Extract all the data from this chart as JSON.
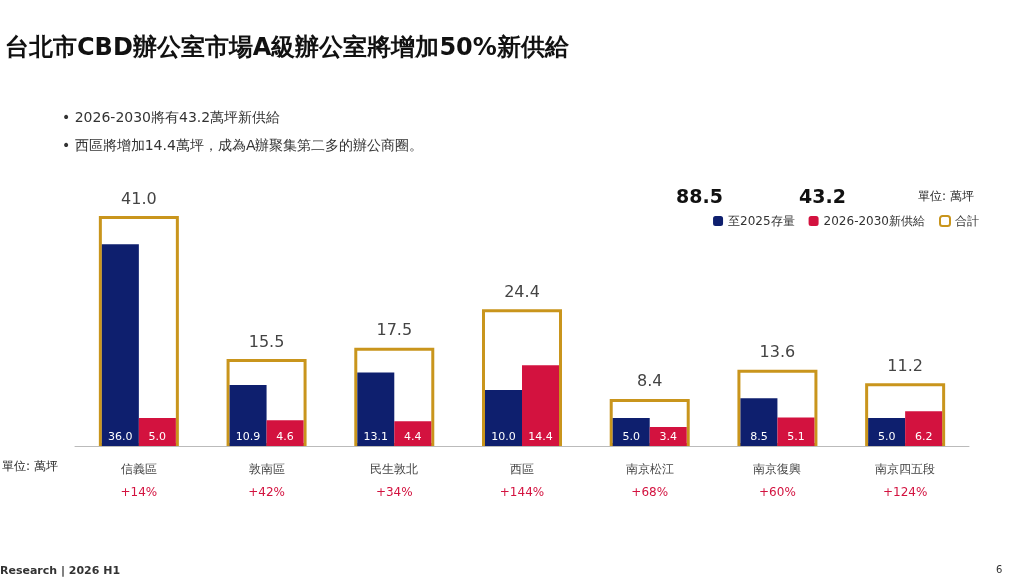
{
  "chart_data": {
    "type": "bar",
    "title": "台北市CBD辦公室市場A級辦公室將增加50%新供給",
    "categories": [
      "信義區",
      "敦南區",
      "民生敦北",
      "西區",
      "南京松江",
      "南京復興",
      "南京四五段"
    ],
    "series": [
      {
        "name": "至2025存量",
        "color": "#0e1f6e",
        "values": [
          36.0,
          10.9,
          13.1,
          10.0,
          5.0,
          8.5,
          5.0
        ],
        "value_labels": [
          "36.0",
          "10.9",
          "13.1",
          "10.0",
          "5.0",
          "8.5",
          "5.0"
        ]
      },
      {
        "name": "2026-2030新供給",
        "color": "#d3123f",
        "values": [
          5.0,
          4.6,
          4.4,
          14.4,
          3.4,
          5.1,
          6.2
        ],
        "value_labels": [
          "5.0",
          "4.6",
          "4.4",
          "14.4",
          "3.4",
          "5.1",
          "6.2"
        ]
      },
      {
        "name": "合計",
        "color": "#c9951c",
        "values": [
          41.0,
          15.5,
          17.5,
          24.4,
          8.4,
          13.6,
          11.2
        ],
        "value_labels": [
          "41.0",
          "15.5",
          "17.5",
          "24.4",
          "8.4",
          "13.6",
          "11.2"
        ]
      }
    ],
    "legend": "top right",
    "annotations": [
      "• 2026-2030將有43.2萬坪新供給",
      "• 西區將增加14.4萬坪，成為A辦聚集第二多的辦公商圈。",
      "88.5",
      "43.2",
      "單位: 萬坪",
      "單位: 萬坪",
      "Research | 2026 H1",
      "6",
      "+14%",
      "+42%",
      "+34%",
      "+144%",
      "+68%",
      "+60%",
      "+124%"
    ]
  }
}
